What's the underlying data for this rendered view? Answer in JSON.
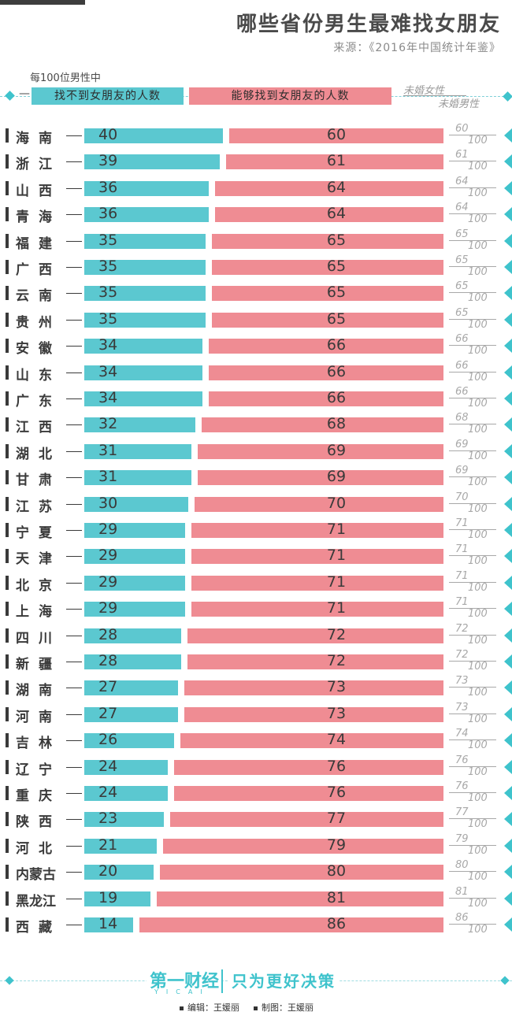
{
  "header": {
    "title": "哪些省份男生最难找女朋友",
    "source": "来源：《2016年中国统计年鉴》"
  },
  "legend": {
    "note": "每100位男性中",
    "blue_label": "找不到女朋友的人数",
    "pink_label": "能够找到女朋友的人数",
    "ratio_top": "未婚女性",
    "ratio_bottom": "未婚男性",
    "dash": "—"
  },
  "colors": {
    "blue": "#5bc8d0",
    "pink": "#ef8c93",
    "accent": "#3fc3cc"
  },
  "chart_data": {
    "type": "bar",
    "title": "哪些省份男生最难找女朋友",
    "series": [
      {
        "name": "找不到女朋友的人数",
        "values": [
          40,
          39,
          36,
          36,
          35,
          35,
          35,
          35,
          34,
          34,
          34,
          32,
          31,
          31,
          30,
          29,
          29,
          29,
          29,
          28,
          28,
          27,
          27,
          26,
          24,
          24,
          23,
          21,
          20,
          19,
          14
        ]
      },
      {
        "name": "能够找到女朋友的人数",
        "values": [
          60,
          61,
          64,
          64,
          65,
          65,
          65,
          65,
          66,
          66,
          66,
          68,
          69,
          69,
          70,
          71,
          71,
          71,
          71,
          72,
          72,
          73,
          73,
          74,
          76,
          76,
          77,
          79,
          80,
          81,
          86
        ]
      }
    ],
    "categories": [
      "海南",
      "浙江",
      "山西",
      "青海",
      "福建",
      "广西",
      "云南",
      "贵州",
      "安徽",
      "山东",
      "广东",
      "江西",
      "湖北",
      "甘肃",
      "江苏",
      "宁夏",
      "天津",
      "北京",
      "上海",
      "四川",
      "新疆",
      "湖南",
      "河南",
      "吉林",
      "辽宁",
      "重庆",
      "陕西",
      "河北",
      "内蒙古",
      "黑龙江",
      "西藏"
    ],
    "ratio_numerators": [
      "60",
      "61",
      "64",
      "64",
      "65",
      "65",
      "65",
      "65",
      "66",
      "66",
      "66",
      "68",
      "69",
      "69",
      "70",
      "71",
      "71",
      "71",
      "71",
      "72",
      "72",
      "73",
      "73",
      "74",
      "76",
      "76",
      "77",
      "79",
      "80",
      "81",
      "86"
    ],
    "ratio_denominator": "100",
    "ylim": [
      0,
      100
    ]
  },
  "footer": {
    "logo": "第一财经",
    "logo_sub": "YICAI",
    "slogan": "只为更好决策",
    "editor": "编辑：王媛丽",
    "designer": "制图：王媛丽"
  }
}
